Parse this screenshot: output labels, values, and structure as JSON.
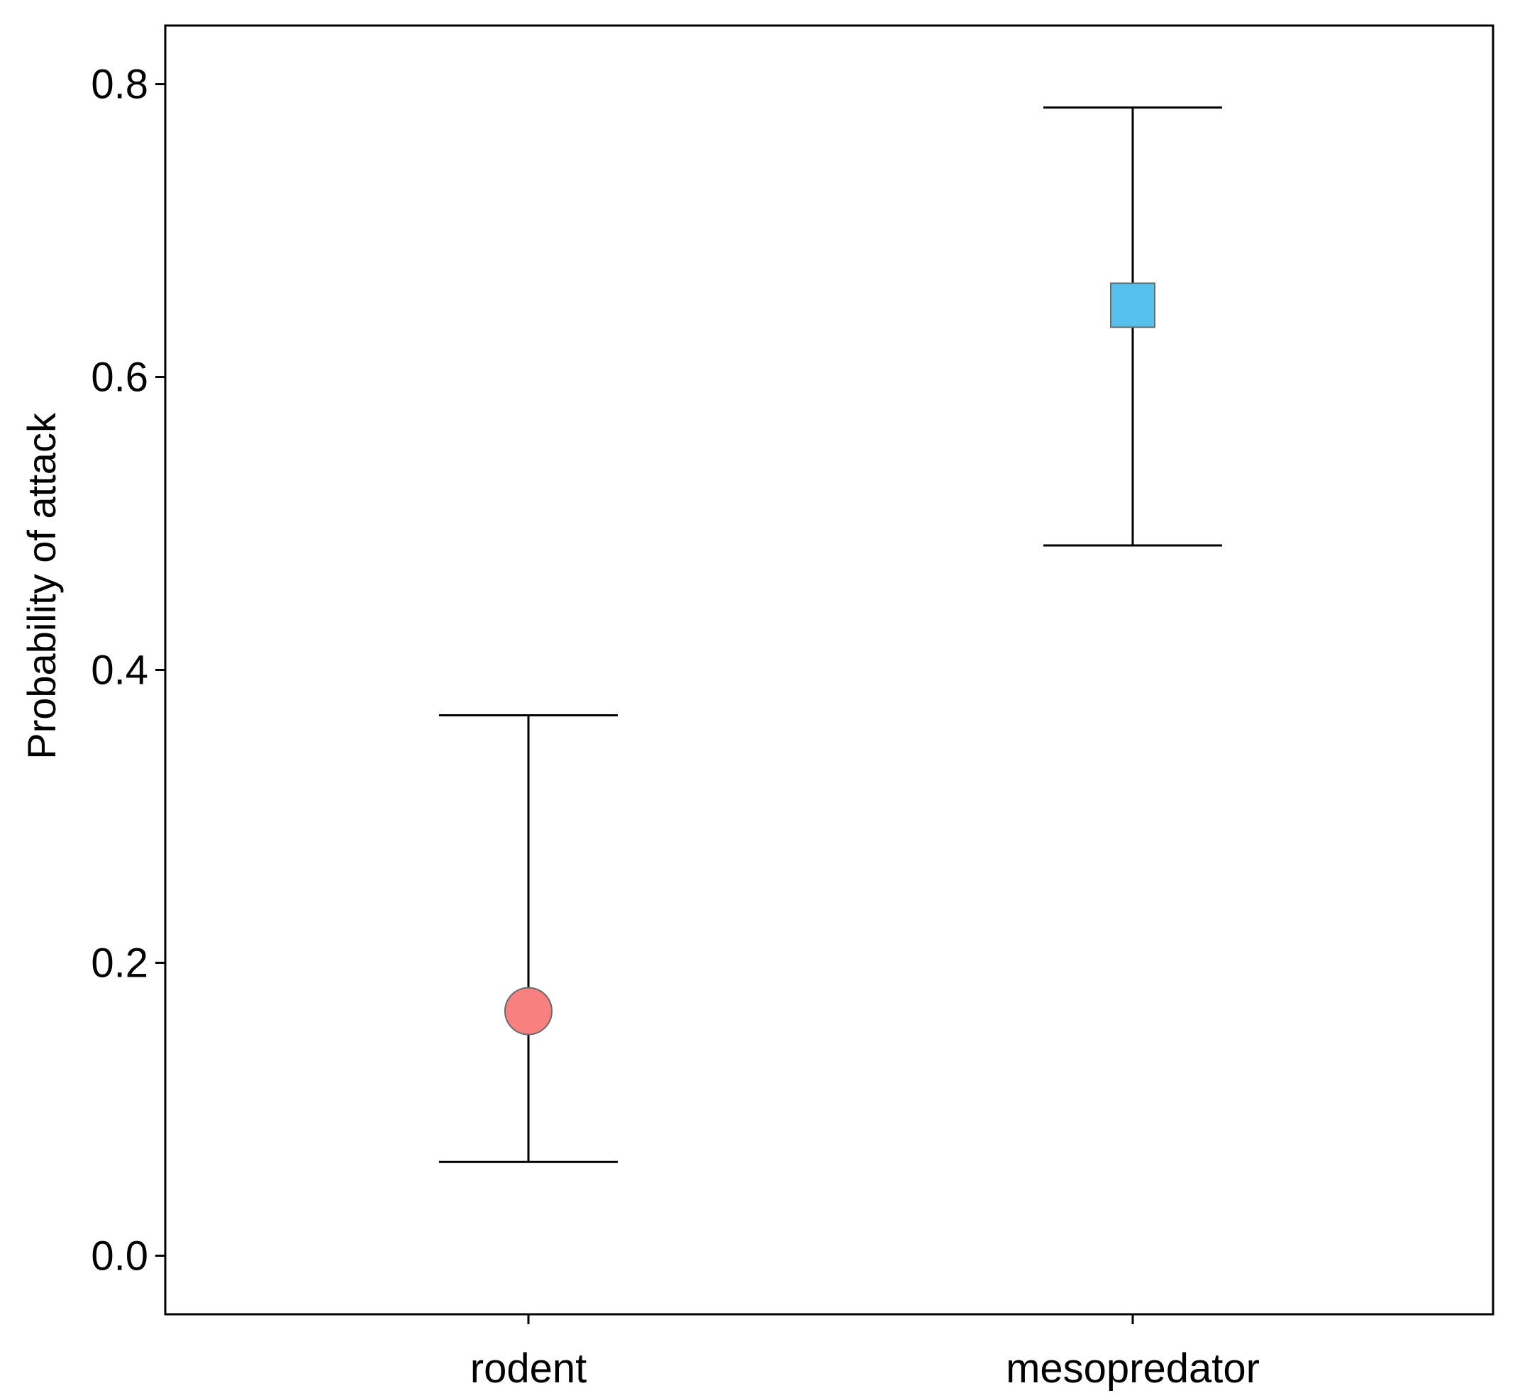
{
  "chart_data": {
    "type": "scatter",
    "title": "",
    "xlabel": "",
    "ylabel": "Probability of attack",
    "categories": [
      "rodent",
      "mesopredator"
    ],
    "series": [
      {
        "category": "rodent",
        "value": 0.167,
        "lower": 0.064,
        "upper": 0.369,
        "marker": "circle",
        "color": "#F8807F"
      },
      {
        "category": "mesopredator",
        "value": 0.649,
        "lower": 0.485,
        "upper": 0.784,
        "marker": "square",
        "color": "#56C1EC"
      }
    ],
    "ylim": [
      -0.04,
      0.84
    ],
    "yticks": [
      0.0,
      0.2,
      0.4,
      0.6,
      0.8
    ],
    "ytick_labels": [
      "0.0",
      "0.2",
      "0.4",
      "0.6",
      "0.8"
    ],
    "grid": false,
    "legend": "none"
  }
}
